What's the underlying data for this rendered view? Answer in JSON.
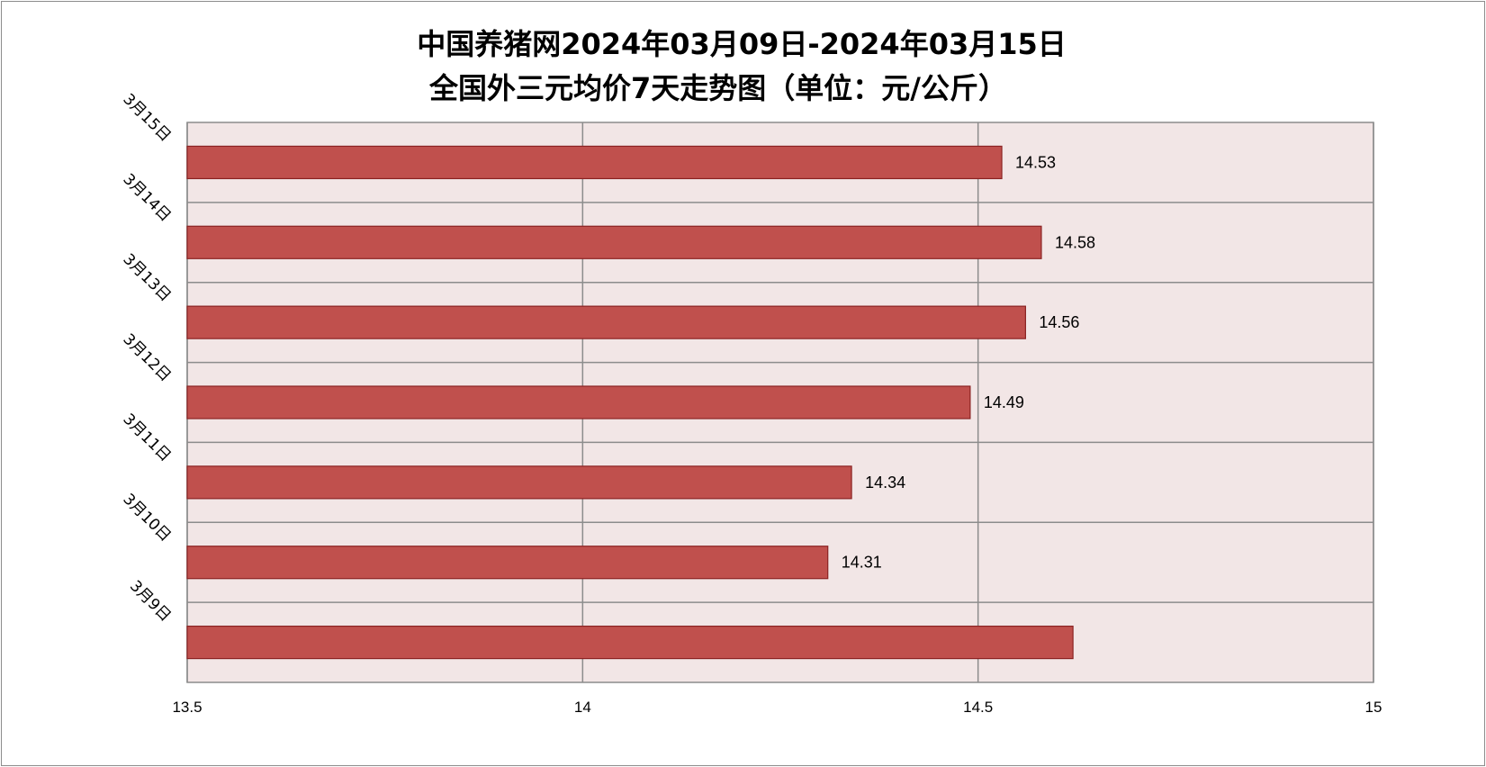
{
  "chart_data": {
    "type": "bar",
    "orientation": "horizontal",
    "title_line1": "中国养猪网2024年03月09日-2024年03月15日",
    "title_line2": "全国外三元均价7天走势图（单位：元/公斤）",
    "categories": [
      "3月9日",
      "3月10日",
      "3月11日",
      "3月12日",
      "3月13日",
      "3月14日",
      "3月15日"
    ],
    "values": [
      14.62,
      14.31,
      14.34,
      14.49,
      14.56,
      14.58,
      14.53
    ],
    "data_labels": [
      "",
      "14.31",
      "14.34",
      "14.49",
      "14.56",
      "14.58",
      "14.53"
    ],
    "xlim": [
      13.5,
      15
    ],
    "x_ticks": [
      "13.5",
      "14",
      "14.5",
      "15"
    ],
    "grid": true,
    "colors": {
      "bar_fill": "#c0504d",
      "bar_stroke": "#8b2323",
      "plot_bg": "#f2e6e6",
      "grid": "#8c8c8c"
    }
  }
}
